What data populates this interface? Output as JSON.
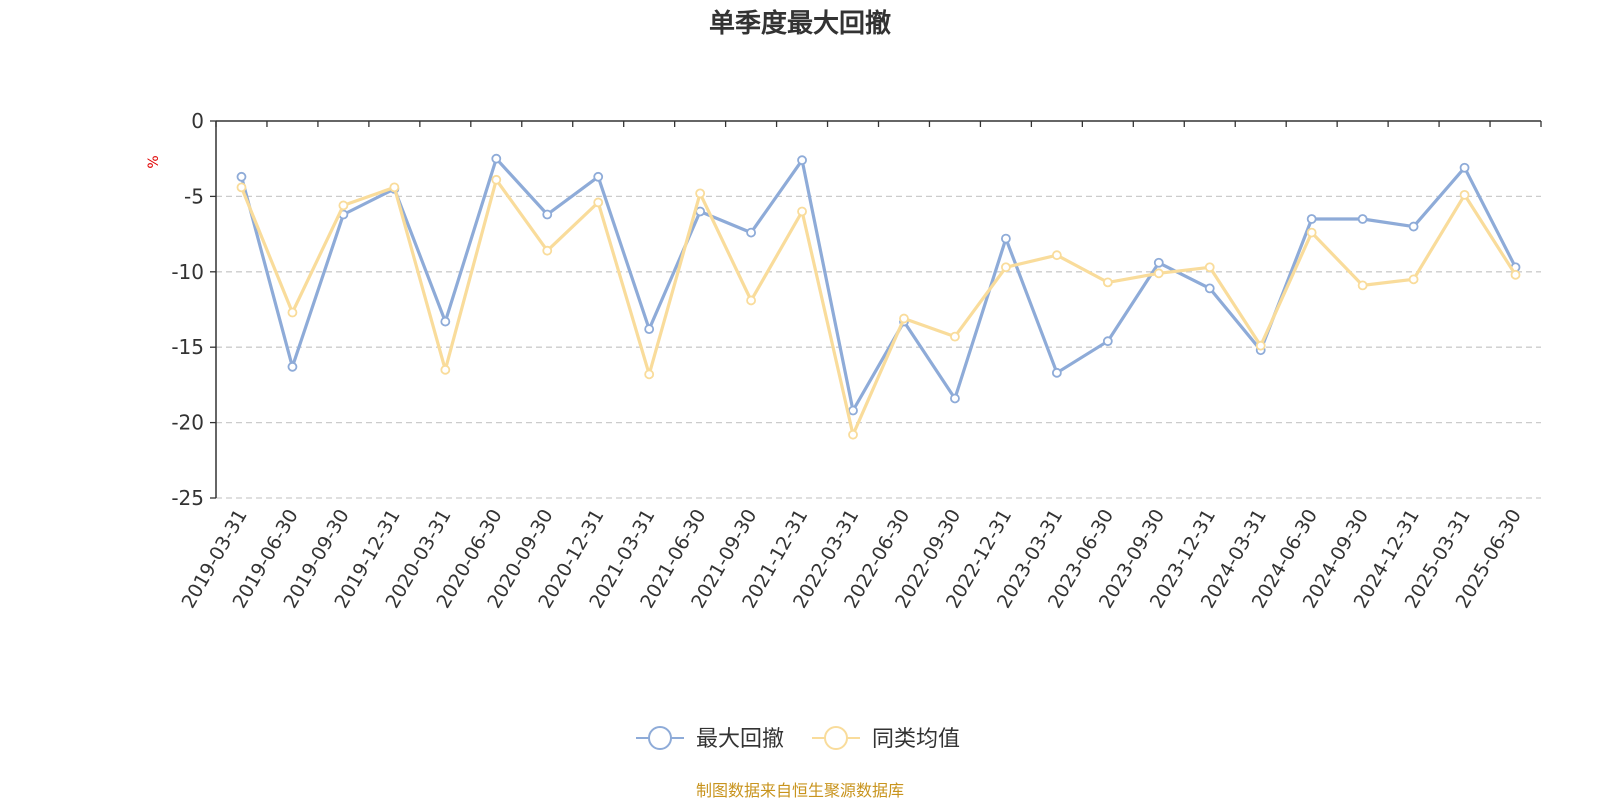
{
  "chart_data": {
    "type": "line",
    "title": "单季度最大回撤",
    "y_unit": "%",
    "xlabel": "",
    "ylabel": "",
    "ylim": [
      -25,
      0
    ],
    "yticks": [
      0,
      -5,
      -10,
      -15,
      -20,
      -25
    ],
    "grid": true,
    "legend_position": "bottom-center",
    "categories": [
      "2019-03-31",
      "2019-06-30",
      "2019-09-30",
      "2019-12-31",
      "2020-03-31",
      "2020-06-30",
      "2020-09-30",
      "2020-12-31",
      "2021-03-31",
      "2021-06-30",
      "2021-09-30",
      "2021-12-31",
      "2022-03-31",
      "2022-06-30",
      "2022-09-30",
      "2022-12-31",
      "2023-03-31",
      "2023-06-30",
      "2023-09-30",
      "2023-12-31",
      "2024-03-31",
      "2024-06-30",
      "2024-09-30",
      "2024-12-31",
      "2025-03-31",
      "2025-06-30"
    ],
    "series": [
      {
        "name": "最大回撤",
        "color": "#8eabd8",
        "values": [
          -3.7,
          -16.3,
          -6.2,
          -4.5,
          -13.3,
          -2.5,
          -6.2,
          -3.7,
          -13.8,
          -6.0,
          -7.4,
          -2.6,
          -19.2,
          -13.3,
          -18.4,
          -7.8,
          -16.7,
          -14.6,
          -9.4,
          -11.1,
          -15.2,
          -6.5,
          -6.5,
          -7.0,
          -3.1,
          -9.7
        ]
      },
      {
        "name": "同类均值",
        "color": "#f9dc9b",
        "values": [
          -4.4,
          -12.7,
          -5.6,
          -4.4,
          -16.5,
          -3.9,
          -8.6,
          -5.4,
          -16.8,
          -4.8,
          -11.9,
          -6.0,
          -20.8,
          -13.1,
          -14.3,
          -9.7,
          -8.9,
          -10.7,
          -10.1,
          -9.7,
          -14.9,
          -7.4,
          -10.9,
          -10.5,
          -4.9,
          -10.2
        ]
      }
    ],
    "source": "制图数据来自恒生聚源数据库"
  }
}
